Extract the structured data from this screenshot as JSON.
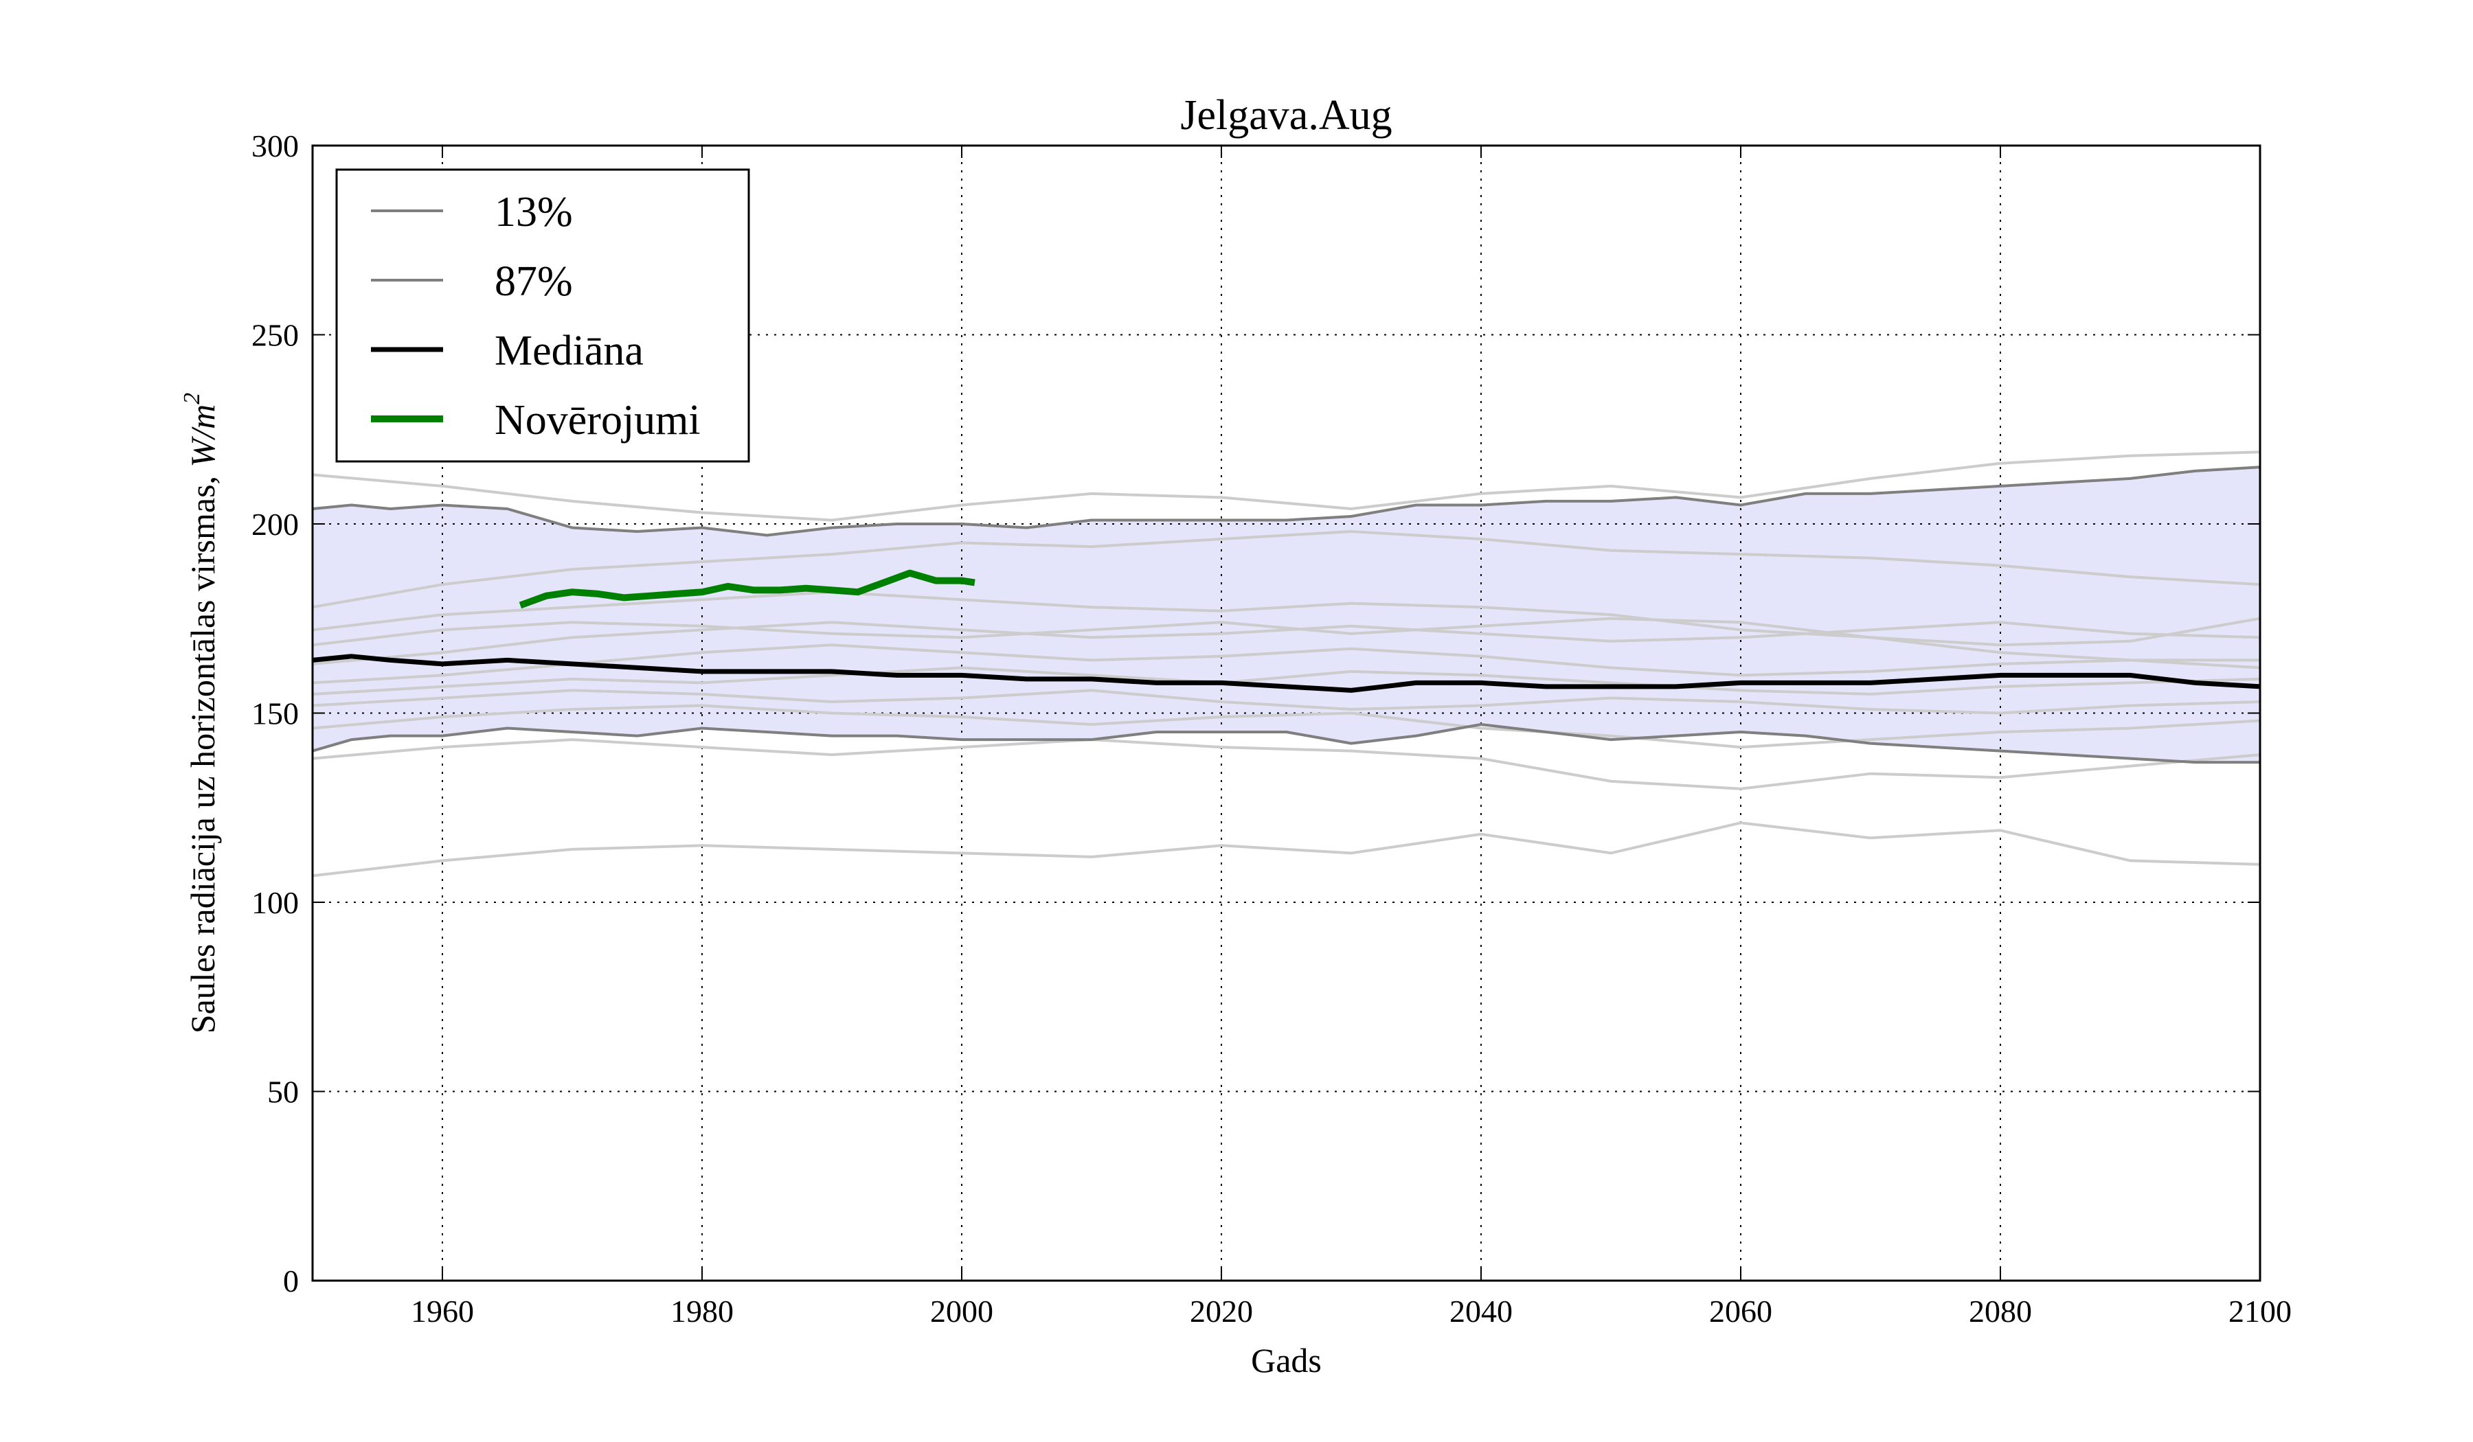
{
  "chart_data": {
    "type": "line",
    "title": "Jelgava.Aug",
    "xlabel": "Gads",
    "ylabel": "Saules radiācija uz horizontālas virsmas, W/m²",
    "ylabel_text": "Saules radiācija uz horizontālas virsmas, ",
    "ylabel_unit_base": "W/m",
    "ylabel_unit_exp": "2",
    "xlim": [
      1950,
      2100
    ],
    "ylim": [
      0,
      300
    ],
    "grid": true,
    "grid_style": "dotted",
    "legend_position": "top-left",
    "x_ticks": [
      1960,
      1980,
      2000,
      2020,
      2040,
      2060,
      2080,
      2100
    ],
    "y_ticks": [
      0,
      50,
      100,
      150,
      200,
      250,
      300
    ],
    "colors": {
      "band_fill": "#e4e4fb",
      "percentile_line": "#7f7f7f",
      "ensemble_line": "#cccccc",
      "median_line": "#000000",
      "observations_line": "#008000"
    },
    "legend": [
      {
        "label": "13%",
        "style": "percentile"
      },
      {
        "label": "87%",
        "style": "percentile"
      },
      {
        "label": "Mediāna",
        "style": "median"
      },
      {
        "label": "Novērojumi",
        "style": "observations"
      }
    ],
    "series": [
      {
        "name": "13%",
        "role": "percentile",
        "x": [
          1950,
          1953,
          1956,
          1960,
          1965,
          1970,
          1975,
          1980,
          1985,
          1990,
          1995,
          2000,
          2005,
          2010,
          2015,
          2020,
          2025,
          2030,
          2035,
          2040,
          2045,
          2050,
          2055,
          2060,
          2065,
          2070,
          2075,
          2080,
          2085,
          2090,
          2095,
          2100
        ],
        "y": [
          140,
          143,
          144,
          144,
          146,
          145,
          144,
          146,
          145,
          144,
          144,
          143,
          143,
          143,
          145,
          145,
          145,
          142,
          144,
          147,
          145,
          143,
          144,
          145,
          144,
          142,
          141,
          140,
          139,
          138,
          137,
          137
        ]
      },
      {
        "name": "87%",
        "role": "percentile",
        "x": [
          1950,
          1953,
          1956,
          1960,
          1965,
          1970,
          1975,
          1980,
          1985,
          1990,
          1995,
          2000,
          2005,
          2010,
          2015,
          2020,
          2025,
          2030,
          2035,
          2040,
          2045,
          2050,
          2055,
          2060,
          2065,
          2070,
          2075,
          2080,
          2085,
          2090,
          2095,
          2100
        ],
        "y": [
          204,
          205,
          204,
          205,
          204,
          199,
          198,
          199,
          197,
          199,
          200,
          200,
          199,
          201,
          201,
          201,
          201,
          202,
          205,
          205,
          206,
          206,
          207,
          205,
          208,
          208,
          209,
          210,
          211,
          212,
          214,
          215
        ]
      },
      {
        "name": "Mediāna",
        "role": "median",
        "x": [
          1950,
          1953,
          1956,
          1960,
          1965,
          1970,
          1975,
          1980,
          1985,
          1990,
          1995,
          2000,
          2005,
          2010,
          2015,
          2020,
          2025,
          2030,
          2035,
          2040,
          2045,
          2050,
          2055,
          2060,
          2065,
          2070,
          2075,
          2080,
          2085,
          2090,
          2095,
          2100
        ],
        "y": [
          164,
          165,
          164,
          163,
          164,
          163,
          162,
          161,
          161,
          161,
          160,
          160,
          159,
          159,
          158,
          158,
          157,
          156,
          158,
          158,
          157,
          157,
          157,
          158,
          158,
          158,
          159,
          160,
          160,
          160,
          158,
          157
        ]
      },
      {
        "name": "Novērojumi",
        "role": "observations",
        "x": [
          1966,
          1968,
          1970,
          1972,
          1974,
          1976,
          1978,
          1980,
          1982,
          1984,
          1986,
          1988,
          1990,
          1992,
          1994,
          1996,
          1998,
          2000,
          2001
        ],
        "y": [
          178.5,
          181,
          182,
          181.5,
          180.5,
          181,
          181.5,
          182,
          183.5,
          182.5,
          182.5,
          183,
          182.5,
          182,
          184.5,
          187,
          185,
          185,
          184.5
        ]
      }
    ],
    "ensemble_members": [
      {
        "x": [
          1950,
          1960,
          1970,
          1980,
          1990,
          2000,
          2010,
          2020,
          2030,
          2040,
          2050,
          2060,
          2070,
          2080,
          2090,
          2100
        ],
        "y": [
          107,
          111,
          114,
          115,
          114,
          113,
          112,
          115,
          113,
          118,
          113,
          121,
          117,
          119,
          111,
          110
        ]
      },
      {
        "x": [
          1950,
          1960,
          1970,
          1980,
          1990,
          2000,
          2010,
          2020,
          2030,
          2040,
          2050,
          2060,
          2070,
          2080,
          2090,
          2100
        ],
        "y": [
          213,
          210,
          206,
          203,
          201,
          205,
          208,
          207,
          204,
          208,
          210,
          207,
          212,
          216,
          218,
          219
        ]
      },
      {
        "x": [
          1950,
          1960,
          1970,
          1980,
          1990,
          2000,
          2010,
          2020,
          2030,
          2040,
          2050,
          2060,
          2070,
          2080,
          2090,
          2100
        ],
        "y": [
          178,
          184,
          188,
          190,
          192,
          195,
          194,
          196,
          198,
          196,
          193,
          192,
          191,
          189,
          186,
          184
        ]
      },
      {
        "x": [
          1950,
          1960,
          1970,
          1980,
          1990,
          2000,
          2010,
          2020,
          2030,
          2040,
          2050,
          2060,
          2070,
          2080,
          2090,
          2100
        ],
        "y": [
          172,
          176,
          178,
          180,
          182,
          180,
          178,
          177,
          179,
          178,
          176,
          172,
          170,
          168,
          169,
          175
        ]
      },
      {
        "x": [
          1950,
          1960,
          1970,
          1980,
          1990,
          2000,
          2010,
          2020,
          2030,
          2040,
          2050,
          2060,
          2070,
          2080,
          2090,
          2100
        ],
        "y": [
          168,
          172,
          174,
          173,
          171,
          170,
          172,
          174,
          171,
          173,
          175,
          174,
          170,
          166,
          164,
          162
        ]
      },
      {
        "x": [
          1950,
          1960,
          1970,
          1980,
          1990,
          2000,
          2010,
          2020,
          2030,
          2040,
          2050,
          2060,
          2070,
          2080,
          2090,
          2100
        ],
        "y": [
          158,
          160,
          163,
          166,
          168,
          166,
          164,
          165,
          167,
          165,
          162,
          160,
          161,
          163,
          164,
          164
        ]
      },
      {
        "x": [
          1950,
          1960,
          1970,
          1980,
          1990,
          2000,
          2010,
          2020,
          2030,
          2040,
          2050,
          2060,
          2070,
          2080,
          2090,
          2100
        ],
        "y": [
          152,
          154,
          156,
          155,
          153,
          154,
          156,
          153,
          151,
          152,
          154,
          153,
          151,
          150,
          152,
          153
        ]
      },
      {
        "x": [
          1950,
          1960,
          1970,
          1980,
          1990,
          2000,
          2010,
          2020,
          2030,
          2040,
          2050,
          2060,
          2070,
          2080,
          2090,
          2100
        ],
        "y": [
          146,
          149,
          151,
          152,
          150,
          149,
          147,
          149,
          150,
          146,
          144,
          141,
          143,
          145,
          146,
          148
        ]
      },
      {
        "x": [
          1950,
          1960,
          1970,
          1980,
          1990,
          2000,
          2010,
          2020,
          2030,
          2040,
          2050,
          2060,
          2070,
          2080,
          2090,
          2100
        ],
        "y": [
          138,
          141,
          143,
          141,
          139,
          141,
          143,
          141,
          140,
          138,
          132,
          130,
          134,
          133,
          136,
          139
        ]
      },
      {
        "x": [
          1950,
          1960,
          1970,
          1980,
          1990,
          2000,
          2010,
          2020,
          2030,
          2040,
          2050,
          2060,
          2070,
          2080,
          2090,
          2100
        ],
        "y": [
          163,
          166,
          170,
          172,
          174,
          172,
          170,
          171,
          173,
          171,
          169,
          170,
          172,
          174,
          171,
          170
        ]
      },
      {
        "x": [
          1950,
          1960,
          1970,
          1980,
          1990,
          2000,
          2010,
          2020,
          2030,
          2040,
          2050,
          2060,
          2070,
          2080,
          2090,
          2100
        ],
        "y": [
          155,
          157,
          159,
          158,
          160,
          162,
          160,
          158,
          161,
          160,
          158,
          156,
          155,
          157,
          158,
          159
        ]
      }
    ]
  }
}
